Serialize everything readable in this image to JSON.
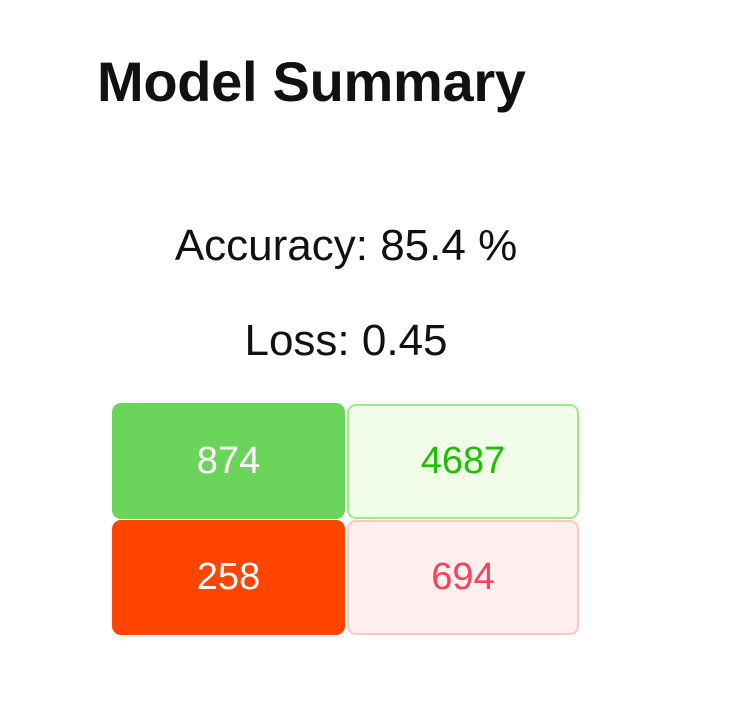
{
  "title": "Model Summary",
  "metrics": {
    "accuracy_text": "Accuracy: 85.4 %",
    "loss_text": "Loss: 0.45"
  },
  "matrix": {
    "cells": [
      {
        "value": "874",
        "background": "#6bd45a",
        "text_color": "#ffffff"
      },
      {
        "value": "4687",
        "background": "#f2fde9",
        "text_color": "#1fbf00"
      },
      {
        "value": "258",
        "background": "#ff4500",
        "text_color": "#ffffff"
      },
      {
        "value": "694",
        "background": "#fff0ef",
        "text_color": "#f6425a"
      }
    ]
  }
}
